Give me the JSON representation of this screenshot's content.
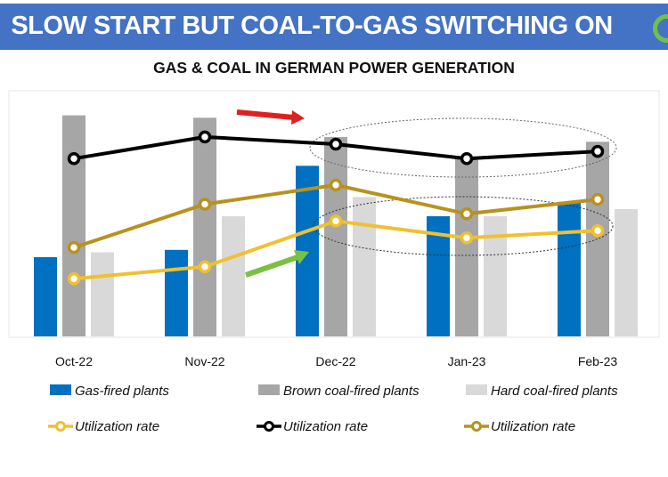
{
  "banner": {
    "title": "SLOW START BUT COAL-TO-GAS SWITCHING ON",
    "color": "#4472c4"
  },
  "chart_data": {
    "type": "bar",
    "title": "GAS & COAL IN GERMAN POWER GENERATION",
    "categories": [
      "Oct-22",
      "Nov-22",
      "Dec-22",
      "Jan-23",
      "Feb-23"
    ],
    "ylim": [
      0,
      100
    ],
    "y_axis_shown": false,
    "grid": false,
    "legend_placement": "bottom",
    "bar_series": [
      {
        "name": "Gas-fired plants",
        "color": "#0070c0",
        "values": [
          33,
          36,
          71,
          50,
          56
        ]
      },
      {
        "name": "Brown coal-fired plants",
        "color": "#a6a6a6",
        "values": [
          92,
          91,
          83,
          74,
          81
        ]
      },
      {
        "name": "Hard coal-fired plants",
        "color": "#d9d9d9",
        "values": [
          35,
          50,
          58,
          50,
          53
        ]
      }
    ],
    "line_series": [
      {
        "name": "Utilization rate",
        "color": "#f0c030",
        "values": [
          24,
          29,
          48,
          41,
          44
        ]
      },
      {
        "name": "Utilization rate",
        "color": "#000000",
        "values": [
          74,
          83,
          80,
          74,
          77
        ]
      },
      {
        "name": "Utilization rate",
        "color": "#b8921e",
        "values": [
          37,
          55,
          63,
          51,
          57
        ]
      }
    ],
    "annotations": [
      {
        "type": "arrow",
        "color": "#e02020",
        "direction": "right"
      },
      {
        "type": "arrow",
        "color": "#7ac143",
        "direction": "up-right"
      },
      {
        "type": "dotted-ellipse",
        "around": "Dec-22 to Feb-23 black line"
      },
      {
        "type": "dotted-ellipse",
        "around": "Dec-22 to Feb-23 yellow line"
      }
    ]
  }
}
